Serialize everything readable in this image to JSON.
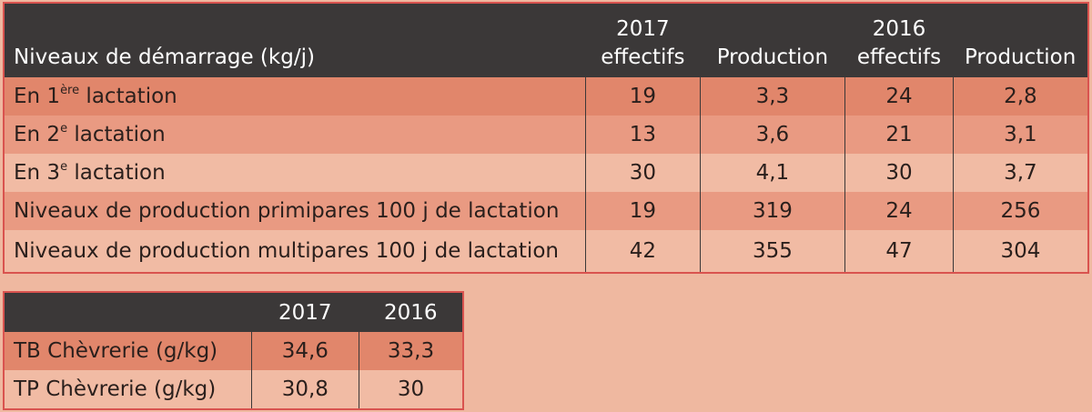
{
  "main_table": {
    "header": {
      "label": "Niveaux de démarrage (kg/j)",
      "year_2017": "2017",
      "year_2016": "2016",
      "effectifs": "effectifs",
      "production": "Production"
    },
    "rows": [
      {
        "label_prefix": "En 1",
        "label_sup": "ère",
        "label_suffix": " lactation",
        "eff_2017": "19",
        "prod_2017": "3,3",
        "eff_2016": "24",
        "prod_2016": "2,8"
      },
      {
        "label_prefix": "En 2",
        "label_sup": "e",
        "label_suffix": " lactation",
        "eff_2017": "13",
        "prod_2017": "3,6",
        "eff_2016": "21",
        "prod_2016": "3,1"
      },
      {
        "label_prefix": "En 3",
        "label_sup": "e",
        "label_suffix": " lactation",
        "eff_2017": "30",
        "prod_2017": "4,1",
        "eff_2016": "30",
        "prod_2016": "3,7"
      },
      {
        "label": "Niveaux de production primipares 100 j de lactation",
        "eff_2017": "19",
        "prod_2017": "319",
        "eff_2016": "24",
        "prod_2016": "256"
      },
      {
        "label": "Niveaux de production multipares 100 j de lactation",
        "eff_2017": "42",
        "prod_2017": "355",
        "eff_2016": "47",
        "prod_2016": "304"
      }
    ]
  },
  "second_table": {
    "header": {
      "year_2017": "2017",
      "year_2016": "2016"
    },
    "rows": [
      {
        "label": "TB Chèvrerie (g/kg)",
        "v2017": "34,6",
        "v2016": "33,3"
      },
      {
        "label": "TP Chèvrerie (g/kg)",
        "v2017": "30,8",
        "v2016": "30"
      }
    ]
  }
}
